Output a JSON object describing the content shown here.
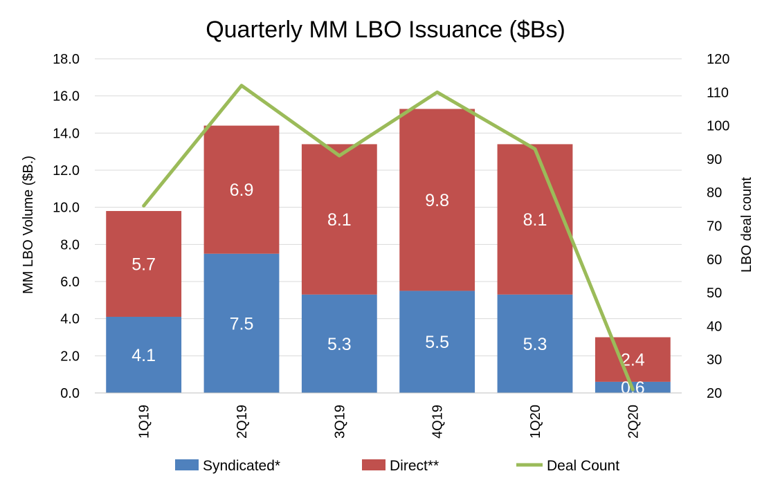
{
  "chart_data": {
    "type": "bar",
    "subtype": "stacked-bar-with-line",
    "title": "Quarterly MM LBO Issuance ($Bs)",
    "categories": [
      "1Q19",
      "2Q19",
      "3Q19",
      "4Q19",
      "1Q20",
      "2Q20"
    ],
    "series": [
      {
        "name": "Syndicated*",
        "type": "bar",
        "axis": "left",
        "color": "#4f81bd",
        "values": [
          4.1,
          7.5,
          5.3,
          5.5,
          5.3,
          0.6
        ]
      },
      {
        "name": "Direct**",
        "type": "bar",
        "axis": "left",
        "color": "#c0504d",
        "values": [
          5.7,
          6.9,
          8.1,
          9.8,
          8.1,
          2.4
        ]
      },
      {
        "name": "Deal Count",
        "type": "line",
        "axis": "right",
        "color": "#9bbb59",
        "values": [
          76,
          112,
          91,
          110,
          93,
          21
        ]
      }
    ],
    "ylabel": "MM LBO Volume ($B.)",
    "y2label": "LBO deal count",
    "ylim": [
      0,
      18
    ],
    "y2lim": [
      20,
      120
    ],
    "yticks": [
      "0.0",
      "2.0",
      "4.0",
      "6.0",
      "8.0",
      "10.0",
      "12.0",
      "14.0",
      "16.0",
      "18.0"
    ],
    "y2ticks": [
      "20",
      "30",
      "40",
      "50",
      "60",
      "70",
      "80",
      "90",
      "100",
      "110",
      "120"
    ],
    "grid": true,
    "legend": "bottom"
  }
}
